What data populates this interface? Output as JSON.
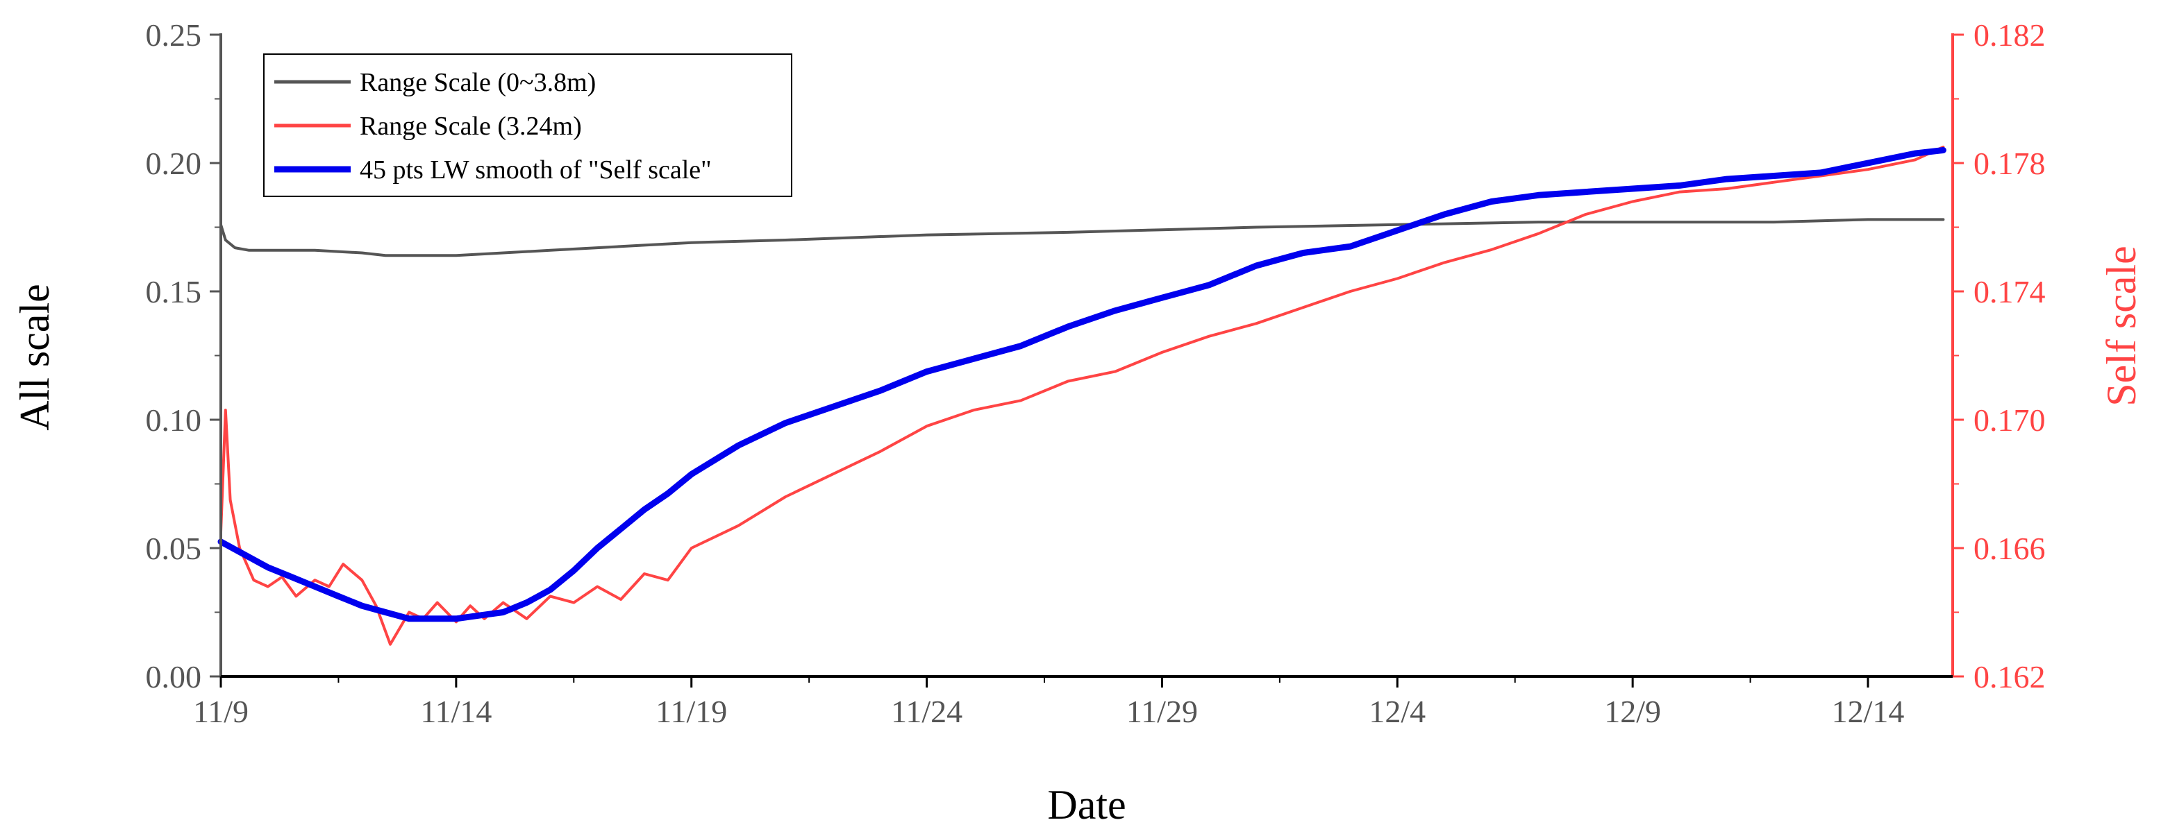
{
  "chart_data": {
    "type": "line",
    "xlabel": "Date",
    "ylabel": "All scale",
    "ylabel_right": "Self scale",
    "x_ticks": [
      "11/9",
      "11/14",
      "11/19",
      "11/24",
      "11/29",
      "12/4",
      "12/9",
      "12/14"
    ],
    "x_tick_days": [
      0,
      5,
      10,
      15,
      20,
      25,
      30,
      35
    ],
    "xlim_days": [
      0,
      36.8
    ],
    "ylim": [
      0,
      0.25
    ],
    "y_ticks": [
      "0.00",
      "0.05",
      "0.10",
      "0.15",
      "0.20",
      "0.25"
    ],
    "ylim_right": [
      0.162,
      0.182
    ],
    "y_ticks_right": [
      "0.162",
      "0.166",
      "0.170",
      "0.174",
      "0.178",
      "0.182"
    ],
    "legend": {
      "position": "top-left"
    },
    "colors": {
      "all_scale_axis": "#555555",
      "self_scale_axis": "#ff4444",
      "range_full": "#555555",
      "range_324": "#ff4444",
      "smooth": "#0000ee"
    },
    "series": [
      {
        "name": "Range Scale (0~3.8m)",
        "axis": "left",
        "color": "#555555",
        "x": [
          0,
          0.1,
          0.3,
          0.6,
          1,
          2,
          3,
          3.5,
          4,
          5,
          6,
          7,
          8,
          9,
          10,
          12,
          15,
          18,
          20,
          22,
          25,
          28,
          30,
          33,
          35,
          36.6
        ],
        "y": [
          0.176,
          0.17,
          0.167,
          0.166,
          0.166,
          0.166,
          0.165,
          0.164,
          0.164,
          0.164,
          0.165,
          0.166,
          0.167,
          0.168,
          0.169,
          0.17,
          0.172,
          0.173,
          0.174,
          0.175,
          0.176,
          0.177,
          0.177,
          0.177,
          0.178,
          0.178
        ]
      },
      {
        "name": "Range Scale  (3.24m)",
        "axis": "right",
        "color": "#ff4444",
        "x": [
          0,
          0.1,
          0.2,
          0.4,
          0.7,
          1,
          1.3,
          1.6,
          2,
          2.3,
          2.6,
          3,
          3.3,
          3.6,
          4,
          4.3,
          4.6,
          5,
          5.3,
          5.6,
          6,
          6.5,
          7,
          7.5,
          8,
          8.5,
          9,
          9.5,
          10,
          11,
          12,
          13,
          14,
          15,
          16,
          17,
          18,
          19,
          20,
          21,
          22,
          23,
          24,
          25,
          26,
          27,
          28,
          29,
          30,
          31,
          32,
          33,
          34,
          35,
          36,
          36.6
        ],
        "y": [
          0.1665,
          0.1703,
          0.1675,
          0.166,
          0.165,
          0.1648,
          0.1651,
          0.1645,
          0.165,
          0.1648,
          0.1655,
          0.165,
          0.1642,
          0.163,
          0.164,
          0.1638,
          0.1643,
          0.1637,
          0.1642,
          0.1638,
          0.1643,
          0.1638,
          0.1645,
          0.1643,
          0.1648,
          0.1644,
          0.1652,
          0.165,
          0.166,
          0.1667,
          0.1676,
          0.1683,
          0.169,
          0.1698,
          0.1703,
          0.1706,
          0.1712,
          0.1715,
          0.1721,
          0.1726,
          0.173,
          0.1735,
          0.174,
          0.1744,
          0.1749,
          0.1753,
          0.1758,
          0.1764,
          0.1768,
          0.1771,
          0.1772,
          0.1774,
          0.1776,
          0.1778,
          0.1781,
          0.1785
        ]
      },
      {
        "name": "45 pts LW smooth of \"Self scale\"",
        "axis": "right",
        "color": "#0000ee",
        "x": [
          0,
          0.5,
          1,
          1.5,
          2,
          2.5,
          3,
          3.5,
          4,
          4.5,
          5,
          5.5,
          6,
          6.5,
          7,
          7.5,
          8,
          8.5,
          9,
          9.5,
          10,
          11,
          12,
          13,
          14,
          15,
          16,
          17,
          18,
          19,
          20,
          21,
          22,
          23,
          24,
          25,
          26,
          27,
          28,
          29,
          30,
          31,
          32,
          33,
          34,
          35,
          36,
          36.6
        ],
        "y": [
          0.1662,
          0.1658,
          0.1654,
          0.1651,
          0.1648,
          0.1645,
          0.1642,
          0.164,
          0.1638,
          0.1638,
          0.1638,
          0.1639,
          0.164,
          0.1643,
          0.1647,
          0.1653,
          0.166,
          0.1666,
          0.1672,
          0.1677,
          0.1683,
          0.1692,
          0.1699,
          0.1704,
          0.1709,
          0.1715,
          0.1719,
          0.1723,
          0.1729,
          0.1734,
          0.1738,
          0.1742,
          0.1748,
          0.1752,
          0.1754,
          0.1759,
          0.1764,
          0.1768,
          0.177,
          0.1771,
          0.1772,
          0.1773,
          0.1775,
          0.1776,
          0.1777,
          0.178,
          0.1783,
          0.1784
        ]
      }
    ]
  }
}
